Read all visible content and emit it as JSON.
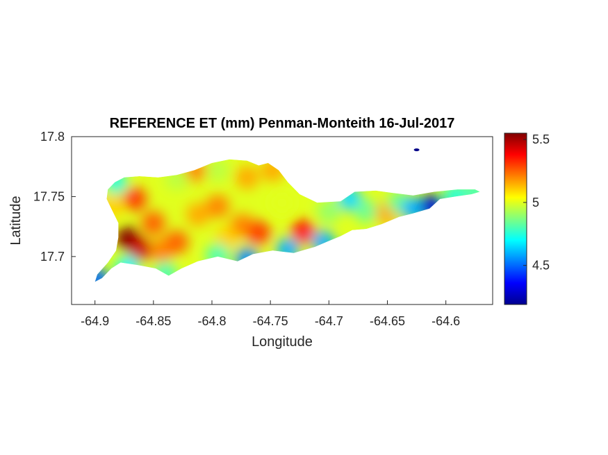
{
  "chart_data": {
    "type": "heatmap",
    "title": "REFERENCE ET (mm) Penman-Monteith 16-Jul-2017",
    "xlabel": "Longitude",
    "ylabel": "Latitude",
    "xlim": [
      -64.92,
      -64.56
    ],
    "ylim": [
      17.66,
      17.8
    ],
    "xticks": [
      -64.9,
      -64.85,
      -64.8,
      -64.75,
      -64.7,
      -64.65,
      -64.6
    ],
    "xtick_labels": [
      "-64.9",
      "-64.85",
      "-64.8",
      "-64.75",
      "-64.7",
      "-64.65",
      "-64.6"
    ],
    "yticks": [
      17.7,
      17.75,
      17.8
    ],
    "ytick_labels": [
      "17.7",
      "17.75",
      "17.8"
    ],
    "colorbar": {
      "colormap": "jet",
      "clim": [
        4.19,
        5.55
      ],
      "ticks": [
        4.5,
        5,
        5.5
      ],
      "tick_labels": [
        "4.5",
        "5",
        "5.5"
      ]
    },
    "grid": false,
    "island_outline": [
      [
        -64.9,
        17.679
      ],
      [
        -64.894,
        17.682
      ],
      [
        -64.886,
        17.69
      ],
      [
        -64.878,
        17.695
      ],
      [
        -64.864,
        17.693
      ],
      [
        -64.848,
        17.69
      ],
      [
        -64.837,
        17.684
      ],
      [
        -64.826,
        17.69
      ],
      [
        -64.812,
        17.696
      ],
      [
        -64.795,
        17.7
      ],
      [
        -64.778,
        17.696
      ],
      [
        -64.765,
        17.702
      ],
      [
        -64.748,
        17.705
      ],
      [
        -64.73,
        17.703
      ],
      [
        -64.712,
        17.708
      ],
      [
        -64.7,
        17.713
      ],
      [
        -64.69,
        17.717
      ],
      [
        -64.68,
        17.722
      ],
      [
        -64.668,
        17.723
      ],
      [
        -64.655,
        17.727
      ],
      [
        -64.64,
        17.733
      ],
      [
        -64.628,
        17.736
      ],
      [
        -64.614,
        17.74
      ],
      [
        -64.605,
        17.748
      ],
      [
        -64.592,
        17.75
      ],
      [
        -64.578,
        17.752
      ],
      [
        -64.571,
        17.754
      ],
      [
        -64.575,
        17.756
      ],
      [
        -64.59,
        17.756
      ],
      [
        -64.61,
        17.754
      ],
      [
        -64.628,
        17.751
      ],
      [
        -64.645,
        17.753
      ],
      [
        -64.66,
        17.755
      ],
      [
        -64.678,
        17.754
      ],
      [
        -64.69,
        17.746
      ],
      [
        -64.71,
        17.745
      ],
      [
        -64.725,
        17.752
      ],
      [
        -64.735,
        17.762
      ],
      [
        -64.743,
        17.772
      ],
      [
        -64.752,
        17.778
      ],
      [
        -64.76,
        17.776
      ],
      [
        -64.77,
        17.78
      ],
      [
        -64.785,
        17.781
      ],
      [
        -64.8,
        17.778
      ],
      [
        -64.815,
        17.772
      ],
      [
        -64.83,
        17.768
      ],
      [
        -64.846,
        17.766
      ],
      [
        -64.862,
        17.767
      ],
      [
        -64.875,
        17.766
      ],
      [
        -64.883,
        17.762
      ],
      [
        -64.889,
        17.756
      ],
      [
        -64.89,
        17.748
      ],
      [
        -64.885,
        17.738
      ],
      [
        -64.88,
        17.728
      ],
      [
        -64.88,
        17.716
      ],
      [
        -64.882,
        17.705
      ],
      [
        -64.889,
        17.695
      ],
      [
        -64.898,
        17.685
      ]
    ],
    "values": [
      {
        "lon": -64.872,
        "lat": 17.715,
        "et": 5.55
      },
      {
        "lon": -64.862,
        "lat": 17.706,
        "et": 5.45
      },
      {
        "lon": -64.866,
        "lat": 17.748,
        "et": 5.3
      },
      {
        "lon": -64.85,
        "lat": 17.728,
        "et": 5.25
      },
      {
        "lon": -64.843,
        "lat": 17.705,
        "et": 5.2
      },
      {
        "lon": -64.83,
        "lat": 17.712,
        "et": 5.25
      },
      {
        "lon": -64.812,
        "lat": 17.735,
        "et": 5.15
      },
      {
        "lon": -64.795,
        "lat": 17.742,
        "et": 5.2
      },
      {
        "lon": -64.787,
        "lat": 17.716,
        "et": 5.1
      },
      {
        "lon": -64.774,
        "lat": 17.726,
        "et": 5.2
      },
      {
        "lon": -64.76,
        "lat": 17.72,
        "et": 5.3
      },
      {
        "lon": -64.722,
        "lat": 17.721,
        "et": 5.35
      },
      {
        "lon": -64.77,
        "lat": 17.766,
        "et": 5.15
      },
      {
        "lon": -64.815,
        "lat": 17.772,
        "et": 5.2
      },
      {
        "lon": -64.748,
        "lat": 17.772,
        "et": 5.15
      },
      {
        "lon": -64.795,
        "lat": 17.772,
        "et": 4.95
      },
      {
        "lon": -64.83,
        "lat": 17.765,
        "et": 4.95
      },
      {
        "lon": -64.74,
        "lat": 17.745,
        "et": 5.0
      },
      {
        "lon": -64.7,
        "lat": 17.738,
        "et": 4.9
      },
      {
        "lon": -64.682,
        "lat": 17.748,
        "et": 4.65
      },
      {
        "lon": -64.668,
        "lat": 17.738,
        "et": 4.85
      },
      {
        "lon": -64.65,
        "lat": 17.736,
        "et": 5.15
      },
      {
        "lon": -64.64,
        "lat": 17.745,
        "et": 4.85
      },
      {
        "lon": -64.628,
        "lat": 17.74,
        "et": 4.6
      },
      {
        "lon": -64.612,
        "lat": 17.742,
        "et": 4.3
      },
      {
        "lon": -64.592,
        "lat": 17.751,
        "et": 4.75
      },
      {
        "lon": -64.574,
        "lat": 17.754,
        "et": 4.8
      },
      {
        "lon": -64.705,
        "lat": 17.712,
        "et": 4.6
      },
      {
        "lon": -64.735,
        "lat": 17.706,
        "et": 4.6
      },
      {
        "lon": -64.77,
        "lat": 17.698,
        "et": 4.55
      },
      {
        "lon": -64.795,
        "lat": 17.701,
        "et": 4.8
      },
      {
        "lon": -64.84,
        "lat": 17.686,
        "et": 4.8
      },
      {
        "lon": -64.872,
        "lat": 17.691,
        "et": 4.7
      },
      {
        "lon": -64.898,
        "lat": 17.681,
        "et": 4.5
      },
      {
        "lon": -64.882,
        "lat": 17.762,
        "et": 4.75
      },
      {
        "lon": -64.886,
        "lat": 17.742,
        "et": 5.1
      },
      {
        "lon": -64.625,
        "lat": 17.789,
        "et": 4.2
      }
    ]
  }
}
